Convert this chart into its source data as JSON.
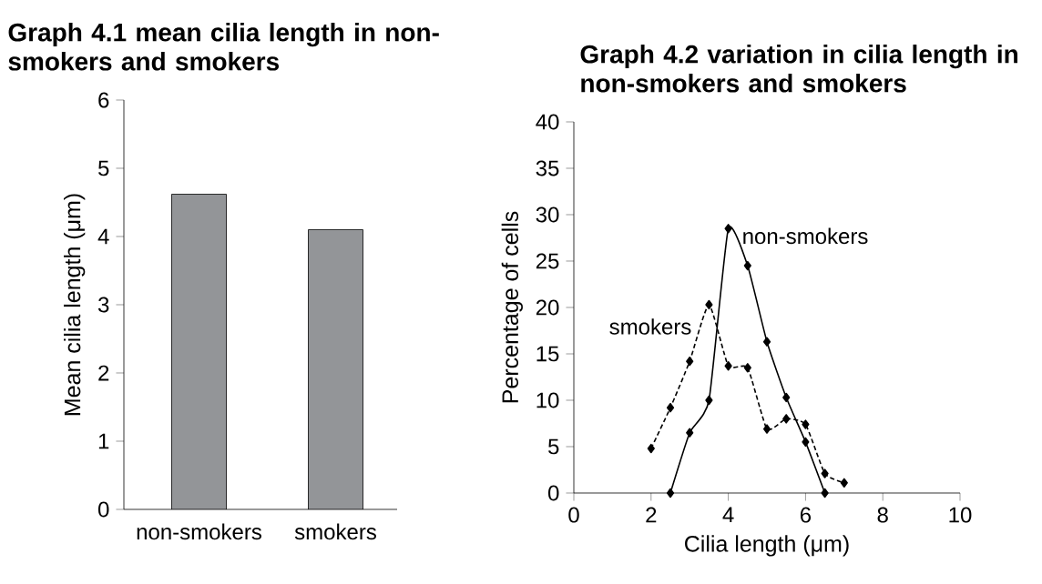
{
  "chart_data": [
    {
      "type": "bar",
      "title": "Graph 4.1 mean cilia length in non-smokers and smokers",
      "ylabel": "Mean cilia length (μm)",
      "categories": [
        "non-smokers",
        "smokers"
      ],
      "values": [
        4.62,
        4.1
      ],
      "color": "#939598",
      "ylim": [
        0,
        6
      ],
      "yticks": [
        0,
        1,
        2,
        3,
        4,
        5,
        6
      ],
      "grid": false
    },
    {
      "type": "line",
      "title": "Graph 4.2 variation in cilia length in non-smokers and smokers",
      "xlabel": "Cilia length (μm)",
      "ylabel": "Percentage of cells",
      "xlim": [
        0,
        10
      ],
      "xticks": [
        0,
        2,
        4,
        6,
        8,
        10
      ],
      "ylim": [
        0,
        40
      ],
      "yticks": [
        0,
        5,
        10,
        15,
        20,
        25,
        30,
        35,
        40
      ],
      "grid": false,
      "marker": "diamond",
      "series": [
        {
          "name": "non-smokers",
          "color": "#000000",
          "line_style": "solid",
          "x": [
            2.5,
            3,
            3.5,
            4,
            4.5,
            5,
            5.5,
            6,
            6.5
          ],
          "values": [
            0,
            6.5,
            10,
            28.5,
            24.5,
            16.3,
            10.3,
            5.5,
            0
          ]
        },
        {
          "name": "smokers",
          "color": "#000000",
          "line_style": "dashed",
          "x": [
            2,
            2.5,
            3,
            3.5,
            4,
            4.5,
            5,
            5.5,
            6,
            6.5,
            7
          ],
          "values": [
            4.8,
            9.2,
            14.2,
            20.3,
            13.7,
            13.5,
            6.9,
            8,
            7.4,
            2.1,
            1.1
          ]
        }
      ]
    }
  ]
}
